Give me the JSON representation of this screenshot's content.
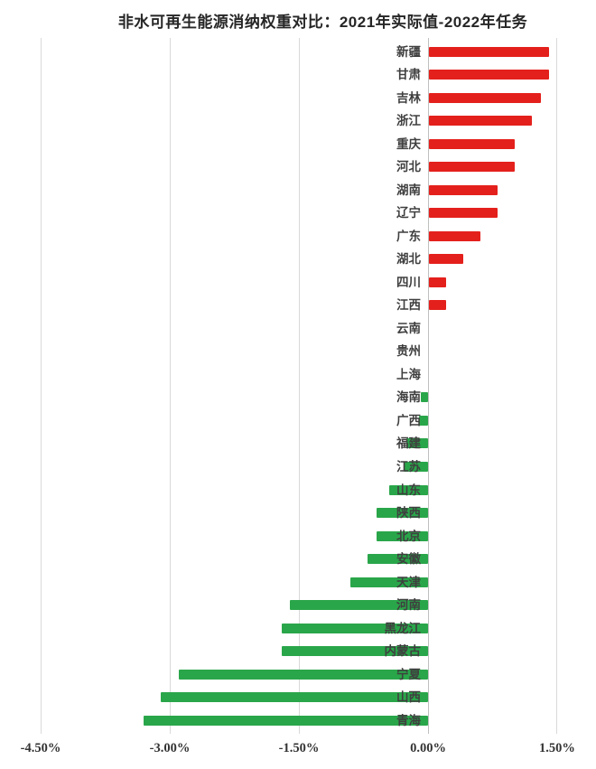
{
  "title": "非水可再生能源消纳权重对比：2021年实际值-2022年任务",
  "chart_data": {
    "type": "bar",
    "orientation": "horizontal",
    "title": "非水可再生能源消纳权重对比：2021年实际值-2022年任务",
    "unit": "%",
    "xlim": [
      -4.5,
      1.5
    ],
    "grid": true,
    "x_ticks": [
      "-4.50%",
      "-3.00%",
      "-1.50%",
      "0.00%",
      "1.50%"
    ],
    "x_tick_values": [
      -4.5,
      -3.0,
      -1.5,
      0.0,
      1.5
    ],
    "positive_color": "#e4201c",
    "negative_color": "#2aa64a",
    "categories": [
      "新疆",
      "甘肃",
      "吉林",
      "浙江",
      "重庆",
      "河北",
      "湖南",
      "辽宁",
      "广东",
      "湖北",
      "四川",
      "江西",
      "云南",
      "贵州",
      "上海",
      "海南",
      "广西",
      "福建",
      "江苏",
      "山东",
      "陕西",
      "北京",
      "安徽",
      "天津",
      "河南",
      "黑龙江",
      "内蒙古",
      "宁夏",
      "山西",
      "青海"
    ],
    "values": [
      1.4,
      1.4,
      1.3,
      1.2,
      1.0,
      1.0,
      0.8,
      0.8,
      0.6,
      0.4,
      0.2,
      0.2,
      0.0,
      0.0,
      0.0,
      -0.08,
      -0.1,
      -0.25,
      -0.28,
      -0.45,
      -0.6,
      -0.6,
      -0.7,
      -0.9,
      -1.6,
      -1.7,
      -1.7,
      -2.9,
      -3.1,
      -3.3
    ]
  }
}
